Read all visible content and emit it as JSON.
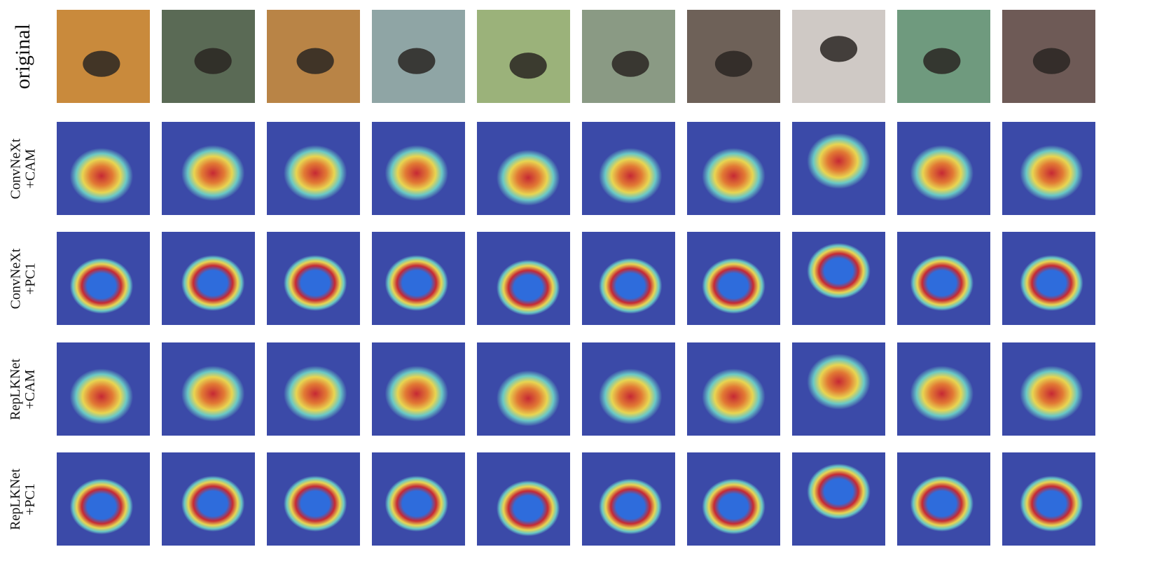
{
  "rows": [
    {
      "label_lines": [
        "original"
      ],
      "kind": "original"
    },
    {
      "label_lines": [
        "ConvNeXt",
        "+CAM"
      ],
      "kind": "cam"
    },
    {
      "label_lines": [
        "ConvNeXt",
        "+PC1"
      ],
      "kind": "pc1"
    },
    {
      "label_lines": [
        "RepLKNet",
        "+CAM"
      ],
      "kind": "cam"
    },
    {
      "label_lines": [
        "RepLKNet",
        "+PC1"
      ],
      "kind": "pc1"
    }
  ],
  "image_count": 10,
  "palette": {
    "original_backgrounds": [
      "#c98a3c",
      "#5a6a55",
      "#b98446",
      "#8fa5a5",
      "#9bb27a",
      "#8a9a84",
      "#6e6158",
      "#cfc9c5",
      "#6f9a7e",
      "#6e5a56"
    ],
    "heat_background": "#3b4aa8",
    "heat_colors": [
      "#d2262a",
      "#f07d2a",
      "#f7e14a",
      "#6ed3c8",
      "#2d6fe0"
    ]
  }
}
